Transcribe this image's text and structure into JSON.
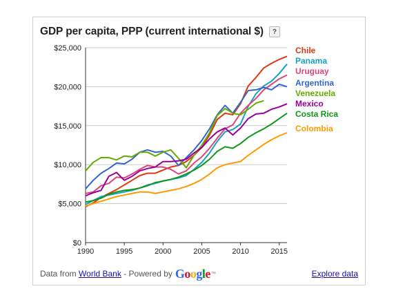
{
  "header": {
    "title": "GDP per capita, PPP (current international $)",
    "help_label": "?"
  },
  "footer": {
    "prefix": "Data from",
    "source_link": "World Bank",
    "powered_by": "- Powered by",
    "google": [
      {
        "ch": "G",
        "color": "#3369e8"
      },
      {
        "ch": "o",
        "color": "#d50f25"
      },
      {
        "ch": "o",
        "color": "#eeb211"
      },
      {
        "ch": "g",
        "color": "#3369e8"
      },
      {
        "ch": "l",
        "color": "#009925"
      },
      {
        "ch": "e",
        "color": "#d50f25"
      }
    ],
    "trademark": "™",
    "explore_link": "Explore data"
  },
  "chart_data": {
    "type": "line",
    "title": "GDP per capita, PPP (current international $)",
    "xlim": [
      1990,
      2016
    ],
    "ylim": [
      0,
      25000
    ],
    "x_ticks": [
      1990,
      1995,
      2000,
      2005,
      2010,
      2015
    ],
    "y_ticks": [
      0,
      5000,
      10000,
      15000,
      20000,
      25000
    ],
    "y_tick_labels": [
      "$0",
      "$5,000",
      "$10,000",
      "$15,000",
      "$20,000",
      "$25,000"
    ],
    "grid": "horizontal",
    "legend": "right",
    "x": [
      1990,
      1991,
      1992,
      1993,
      1994,
      1995,
      1996,
      1997,
      1998,
      1999,
      2000,
      2001,
      2002,
      2003,
      2004,
      2005,
      2006,
      2007,
      2008,
      2009,
      2010,
      2011,
      2012,
      2013,
      2014,
      2015,
      2016
    ],
    "series": [
      {
        "name": "Chile",
        "color": "#dc3912",
        "values": [
          4600,
          5100,
          5800,
          6300,
          6800,
          7400,
          8000,
          8600,
          8900,
          8900,
          9300,
          9700,
          9900,
          10400,
          11200,
          12200,
          13800,
          15800,
          16600,
          16400,
          17800,
          20100,
          21200,
          22400,
          23000,
          23500,
          23900
        ]
      },
      {
        "name": "Panama",
        "color": "#19a0c8",
        "values": [
          4900,
          5400,
          5900,
          6100,
          6300,
          6500,
          6700,
          7000,
          7400,
          7600,
          7900,
          8100,
          8300,
          8600,
          9400,
          10300,
          11500,
          13000,
          14200,
          14500,
          15200,
          17500,
          19100,
          20100,
          20700,
          21700,
          22900
        ]
      },
      {
        "name": "Uruguay",
        "color": "#dd4477",
        "values": [
          6300,
          6500,
          7300,
          7600,
          8400,
          8300,
          8800,
          9400,
          9900,
          9700,
          9700,
          9400,
          8800,
          9200,
          10200,
          11000,
          12100,
          13400,
          14600,
          15100,
          16600,
          17600,
          18500,
          19600,
          20300,
          21000,
          21500
        ]
      },
      {
        "name": "Argentina",
        "color": "#3366cc",
        "values": [
          6900,
          8000,
          8900,
          9500,
          10200,
          10100,
          10700,
          11600,
          11900,
          11600,
          11700,
          11100,
          9900,
          10900,
          11900,
          13100,
          14600,
          16400,
          17600,
          16600,
          18000,
          19500,
          19600,
          19900,
          19600,
          20300,
          20000
        ]
      },
      {
        "name": "Venezuela",
        "color": "#66aa00",
        "values": [
          9200,
          10300,
          10900,
          10900,
          10600,
          11100,
          11000,
          11600,
          11600,
          11100,
          11600,
          11900,
          10800,
          9600,
          11200,
          12500,
          14100,
          16300,
          17200,
          16600,
          16400,
          17100,
          17900,
          18200,
          null,
          null,
          null
        ]
      },
      {
        "name": "Mexico",
        "color": "#990099",
        "values": [
          6000,
          6400,
          6700,
          8500,
          9000,
          8000,
          8500,
          9200,
          9500,
          9700,
          10400,
          10400,
          10500,
          10700,
          11500,
          12200,
          13300,
          14200,
          14700,
          13800,
          14700,
          15900,
          16500,
          16600,
          17100,
          17400,
          17800
        ]
      },
      {
        "name": "Costa Rica",
        "color": "#109618",
        "values": [
          5200,
          5400,
          5700,
          6200,
          6500,
          6700,
          6800,
          7000,
          7300,
          7700,
          7900,
          8100,
          8400,
          8800,
          9300,
          9900,
          10700,
          11700,
          12300,
          12100,
          12700,
          13500,
          14100,
          14600,
          15200,
          15900,
          16600
        ]
      },
      {
        "name": "Colombia",
        "color": "#ff9900",
        "values": [
          4700,
          5000,
          5300,
          5600,
          5900,
          6100,
          6300,
          6500,
          6500,
          6300,
          6500,
          6700,
          6900,
          7200,
          7600,
          8100,
          8800,
          9600,
          10000,
          10200,
          10400,
          11200,
          11900,
          12600,
          13200,
          13700,
          14100
        ]
      }
    ]
  }
}
